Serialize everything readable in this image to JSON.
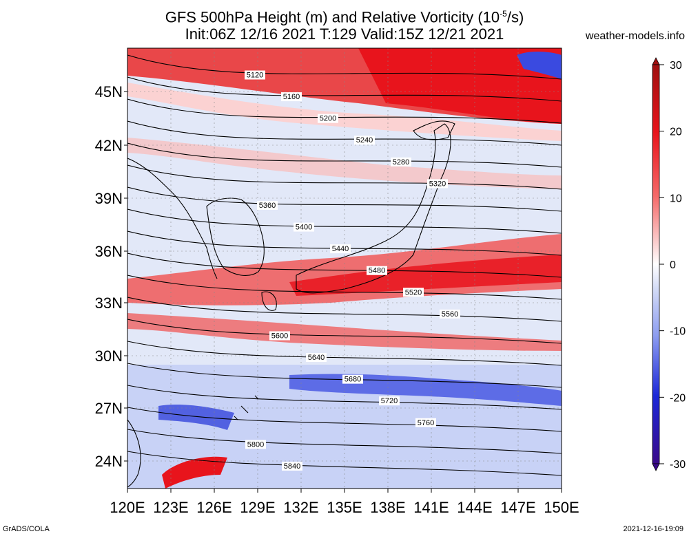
{
  "header": {
    "title_line1_prefix": "GFS 500hPa Height (m) and Relative Vorticity (10",
    "title_line1_sup": "-5",
    "title_line1_suffix": "/s)",
    "title_line2": "Init:06Z 12/16 2021 T:129 Valid:15Z 12/21 2021",
    "site": "weather-models.info"
  },
  "footer": {
    "credit": "GrADS/COLA",
    "timestamp": "2021-12-16-19:09"
  },
  "map": {
    "lat_labels": [
      "45N",
      "42N",
      "39N",
      "36N",
      "33N",
      "30N",
      "27N",
      "24N"
    ],
    "lon_labels": [
      "120E",
      "123E",
      "126E",
      "129E",
      "132E",
      "135E",
      "138E",
      "141E",
      "144E",
      "147E",
      "150E"
    ],
    "colorbar_labels": [
      "30",
      "20",
      "10",
      "0",
      "-10",
      "-20",
      "-30"
    ],
    "colors": {
      "strong_positive": "#e8141c",
      "moderate_positive": "#f56a6a",
      "weak_positive": "#fbd2d2",
      "neutral": "#ffffff",
      "weak_negative": "#d4dcf6",
      "moderate_negative": "#8c9cf0",
      "strong_negative": "#1c28d8"
    },
    "contours": [
      {
        "label": "5120"
      },
      {
        "label": "5160"
      },
      {
        "label": "5200"
      },
      {
        "label": "5240"
      },
      {
        "label": "5280"
      },
      {
        "label": "5320"
      },
      {
        "label": "5360"
      },
      {
        "label": "5400"
      },
      {
        "label": "5440"
      },
      {
        "label": "5480"
      },
      {
        "label": "5520"
      },
      {
        "label": "5560"
      },
      {
        "label": "5600"
      },
      {
        "label": "5640"
      },
      {
        "label": "5680"
      },
      {
        "label": "5720"
      },
      {
        "label": "5760"
      },
      {
        "label": "5800"
      },
      {
        "label": "5840"
      }
    ]
  }
}
